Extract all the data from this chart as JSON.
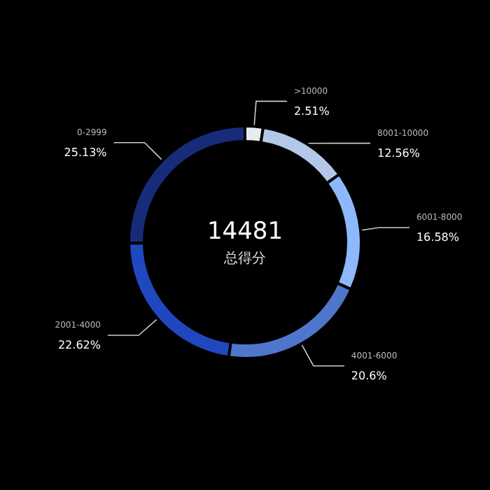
{
  "chart_data": {
    "type": "donut",
    "title": "14481",
    "subtitle": "总得分",
    "categories": [
      ">10000",
      "8001-10000",
      "6001-8000",
      "4001-6000",
      "2001-4000",
      "0-2999"
    ],
    "values": [
      2.51,
      12.56,
      16.58,
      20.6,
      22.62,
      25.13
    ],
    "colors": [
      "#e8ebf2",
      "#b3c7e8",
      "#8db8fb",
      "#4e77cc",
      "#1f48c0",
      "#162c7a"
    ],
    "value_labels": [
      "2.51%",
      "12.56%",
      "16.58%",
      "20.6%",
      "22.62%",
      "25.13%"
    ],
    "legend": false
  }
}
